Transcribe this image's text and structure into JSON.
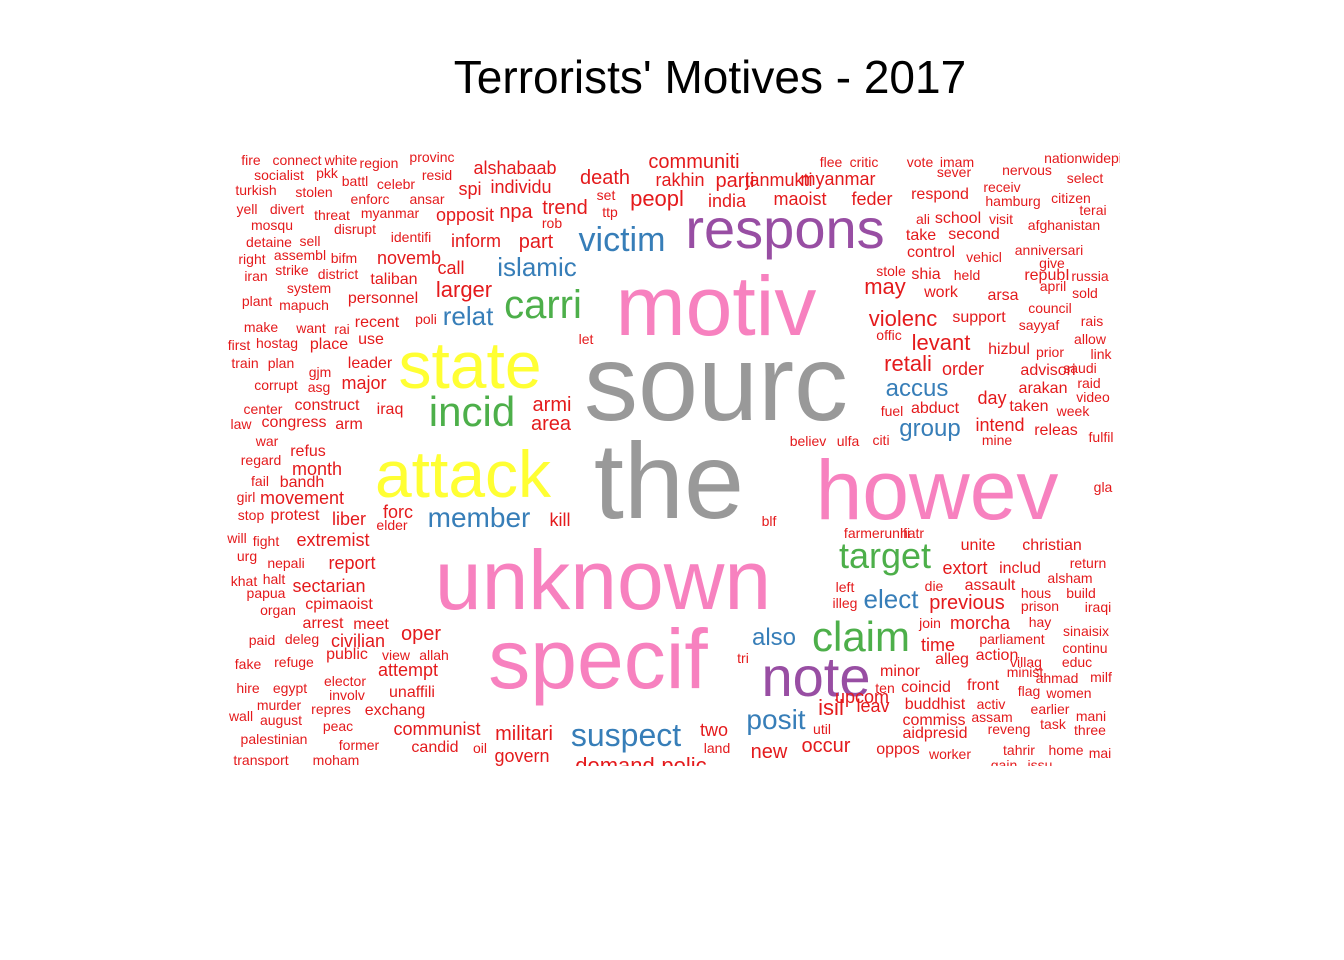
{
  "title": "Terrorists' Motives - 2017",
  "colors": {
    "red": "#e41a1c",
    "blue": "#377eb8",
    "green": "#4daf4a",
    "purple": "#984ea3",
    "yellow": "#ffff33",
    "gray": "#999999",
    "pink": "#f781bf"
  },
  "words": [
    {
      "text": "sourc",
      "color": "gray"
    },
    {
      "text": "the",
      "color": "gray"
    },
    {
      "text": "motiv",
      "color": "pink"
    },
    {
      "text": "unknown",
      "color": "pink"
    },
    {
      "text": "specif",
      "color": "pink"
    },
    {
      "text": "howev",
      "color": "pink"
    },
    {
      "text": "state",
      "color": "yellow"
    },
    {
      "text": "attack",
      "color": "yellow"
    },
    {
      "text": "respons",
      "color": "purple"
    },
    {
      "text": "note",
      "color": "purple"
    },
    {
      "text": "claim",
      "color": "green"
    },
    {
      "text": "incid",
      "color": "green"
    },
    {
      "text": "carri",
      "color": "green"
    },
    {
      "text": "target",
      "color": "green"
    },
    {
      "text": "victim",
      "color": "blue"
    },
    {
      "text": "suspect",
      "color": "blue"
    },
    {
      "text": "member",
      "color": "blue"
    },
    {
      "text": "islamic",
      "color": "blue"
    },
    {
      "text": "relat",
      "color": "blue"
    },
    {
      "text": "accus",
      "color": "blue"
    },
    {
      "text": "group",
      "color": "blue"
    },
    {
      "text": "elect",
      "color": "blue"
    },
    {
      "text": "also",
      "color": "blue"
    },
    {
      "text": "posit",
      "color": "blue"
    },
    {
      "text": "peopl",
      "color": "red"
    },
    {
      "text": "communiti",
      "color": "red"
    },
    {
      "text": "alshabaab",
      "color": "red"
    },
    {
      "text": "death",
      "color": "red"
    },
    {
      "text": "rakhin",
      "color": "red"
    },
    {
      "text": "parti",
      "color": "red"
    },
    {
      "text": "janmukti",
      "color": "red"
    },
    {
      "text": "myanmar",
      "color": "red"
    },
    {
      "text": "maoist",
      "color": "red"
    },
    {
      "text": "feder",
      "color": "red"
    },
    {
      "text": "india",
      "color": "red"
    },
    {
      "text": "trend",
      "color": "red"
    },
    {
      "text": "npa",
      "color": "red"
    },
    {
      "text": "opposit",
      "color": "red"
    },
    {
      "text": "individu",
      "color": "red"
    },
    {
      "text": "spi",
      "color": "red"
    },
    {
      "text": "inform",
      "color": "red"
    },
    {
      "text": "part",
      "color": "red"
    },
    {
      "text": "larger",
      "color": "red"
    },
    {
      "text": "call",
      "color": "red"
    },
    {
      "text": "novemb",
      "color": "red"
    },
    {
      "text": "taliban",
      "color": "red"
    },
    {
      "text": "personnel",
      "color": "red"
    },
    {
      "text": "recent",
      "color": "red"
    },
    {
      "text": "use",
      "color": "red"
    },
    {
      "text": "leader",
      "color": "red"
    },
    {
      "text": "place",
      "color": "red"
    },
    {
      "text": "major",
      "color": "red"
    },
    {
      "text": "iraq",
      "color": "red"
    },
    {
      "text": "armi",
      "color": "red"
    },
    {
      "text": "area",
      "color": "red"
    },
    {
      "text": "construct",
      "color": "red"
    },
    {
      "text": "arm",
      "color": "red"
    },
    {
      "text": "congress",
      "color": "red"
    },
    {
      "text": "refus",
      "color": "red"
    },
    {
      "text": "month",
      "color": "red"
    },
    {
      "text": "bandh",
      "color": "red"
    },
    {
      "text": "movement",
      "color": "red"
    },
    {
      "text": "protest",
      "color": "red"
    },
    {
      "text": "liber",
      "color": "red"
    },
    {
      "text": "forc",
      "color": "red"
    },
    {
      "text": "kill",
      "color": "red"
    },
    {
      "text": "extremist",
      "color": "red"
    },
    {
      "text": "report",
      "color": "red"
    },
    {
      "text": "sectarian",
      "color": "red"
    },
    {
      "text": "cpimaoist",
      "color": "red"
    },
    {
      "text": "arrest",
      "color": "red"
    },
    {
      "text": "meet",
      "color": "red"
    },
    {
      "text": "civilian",
      "color": "red"
    },
    {
      "text": "public",
      "color": "red"
    },
    {
      "text": "oper",
      "color": "red"
    },
    {
      "text": "attempt",
      "color": "red"
    },
    {
      "text": "unaffili",
      "color": "red"
    },
    {
      "text": "exchang",
      "color": "red"
    },
    {
      "text": "communist",
      "color": "red"
    },
    {
      "text": "candid",
      "color": "red"
    },
    {
      "text": "militari",
      "color": "red"
    },
    {
      "text": "govern",
      "color": "red"
    },
    {
      "text": "two",
      "color": "red"
    },
    {
      "text": "new",
      "color": "red"
    },
    {
      "text": "occur",
      "color": "red"
    },
    {
      "text": "isil",
      "color": "red"
    },
    {
      "text": "leav",
      "color": "red"
    },
    {
      "text": "upcom",
      "color": "red"
    },
    {
      "text": "minor",
      "color": "red"
    },
    {
      "text": "commiss",
      "color": "red"
    },
    {
      "text": "oppos",
      "color": "red"
    },
    {
      "text": "may",
      "color": "red"
    },
    {
      "text": "violenc",
      "color": "red"
    },
    {
      "text": "levant",
      "color": "red"
    },
    {
      "text": "retali",
      "color": "red"
    },
    {
      "text": "order",
      "color": "red"
    },
    {
      "text": "day",
      "color": "red"
    },
    {
      "text": "abduct",
      "color": "red"
    },
    {
      "text": "intend",
      "color": "red"
    },
    {
      "text": "releas",
      "color": "red"
    },
    {
      "text": "unite",
      "color": "red"
    },
    {
      "text": "christian",
      "color": "red"
    },
    {
      "text": "extort",
      "color": "red"
    },
    {
      "text": "includ",
      "color": "red"
    },
    {
      "text": "assault",
      "color": "red"
    },
    {
      "text": "previous",
      "color": "red"
    },
    {
      "text": "morcha",
      "color": "red"
    },
    {
      "text": "time",
      "color": "red"
    },
    {
      "text": "alleg",
      "color": "red"
    },
    {
      "text": "action",
      "color": "red"
    },
    {
      "text": "coincid",
      "color": "red"
    },
    {
      "text": "front",
      "color": "red"
    },
    {
      "text": "buddhist",
      "color": "red"
    },
    {
      "text": "aidpresid",
      "color": "red"
    },
    {
      "text": "worker",
      "color": "red"
    },
    {
      "text": "respond",
      "color": "red"
    },
    {
      "text": "school",
      "color": "red"
    },
    {
      "text": "second",
      "color": "red"
    },
    {
      "text": "control",
      "color": "red"
    },
    {
      "text": "take",
      "color": "red"
    },
    {
      "text": "shia",
      "color": "red"
    },
    {
      "text": "work",
      "color": "red"
    },
    {
      "text": "support",
      "color": "red"
    },
    {
      "text": "hizbul",
      "color": "red"
    },
    {
      "text": "advisori",
      "color": "red"
    },
    {
      "text": "arakan",
      "color": "red"
    },
    {
      "text": "taken",
      "color": "red"
    },
    {
      "text": "repubI",
      "color": "red"
    },
    {
      "text": "arsa",
      "color": "red"
    },
    {
      "text": "socialist",
      "color": "red"
    },
    {
      "text": "turkish",
      "color": "red"
    },
    {
      "text": "stolen",
      "color": "red"
    },
    {
      "text": "battl",
      "color": "red"
    },
    {
      "text": "celebr",
      "color": "red"
    },
    {
      "text": "pkk",
      "color": "red"
    },
    {
      "text": "region",
      "color": "red"
    },
    {
      "text": "resid",
      "color": "red"
    },
    {
      "text": "enforc",
      "color": "red"
    },
    {
      "text": "ansar",
      "color": "red"
    },
    {
      "text": "yell",
      "color": "red"
    },
    {
      "text": "divert",
      "color": "red"
    },
    {
      "text": "threat",
      "color": "red"
    },
    {
      "text": "myanmar",
      "color": "red"
    },
    {
      "text": "mosqu",
      "color": "red"
    },
    {
      "text": "disrupt",
      "color": "red"
    },
    {
      "text": "identifi",
      "color": "red"
    },
    {
      "text": "detaine",
      "color": "red"
    },
    {
      "text": "sell",
      "color": "red"
    },
    {
      "text": "right",
      "color": "red"
    },
    {
      "text": "assembl",
      "color": "red"
    },
    {
      "text": "bifm",
      "color": "red"
    },
    {
      "text": "iran",
      "color": "red"
    },
    {
      "text": "strike",
      "color": "red"
    },
    {
      "text": "district",
      "color": "red"
    },
    {
      "text": "system",
      "color": "red"
    },
    {
      "text": "plant",
      "color": "red"
    },
    {
      "text": "mapuch",
      "color": "red"
    },
    {
      "text": "make",
      "color": "red"
    },
    {
      "text": "want",
      "color": "red"
    },
    {
      "text": "rai",
      "color": "red"
    },
    {
      "text": "first",
      "color": "red"
    },
    {
      "text": "hostag",
      "color": "red"
    },
    {
      "text": "train",
      "color": "red"
    },
    {
      "text": "plan",
      "color": "red"
    },
    {
      "text": "gjm",
      "color": "red"
    },
    {
      "text": "corrupt",
      "color": "red"
    },
    {
      "text": "asg",
      "color": "red"
    },
    {
      "text": "center",
      "color": "red"
    },
    {
      "text": "law",
      "color": "red"
    },
    {
      "text": "war",
      "color": "red"
    },
    {
      "text": "regard",
      "color": "red"
    },
    {
      "text": "fail",
      "color": "red"
    },
    {
      "text": "girl",
      "color": "red"
    },
    {
      "text": "stop",
      "color": "red"
    },
    {
      "text": "will",
      "color": "red"
    },
    {
      "text": "fight",
      "color": "red"
    },
    {
      "text": "elder",
      "color": "red"
    },
    {
      "text": "urg",
      "color": "red"
    },
    {
      "text": "nepali",
      "color": "red"
    },
    {
      "text": "khat",
      "color": "red"
    },
    {
      "text": "halt",
      "color": "red"
    },
    {
      "text": "papua",
      "color": "red"
    },
    {
      "text": "organ",
      "color": "red"
    },
    {
      "text": "paid",
      "color": "red"
    },
    {
      "text": "deleg",
      "color": "red"
    },
    {
      "text": "view",
      "color": "red"
    },
    {
      "text": "allah",
      "color": "red"
    },
    {
      "text": "fake",
      "color": "red"
    },
    {
      "text": "refuge",
      "color": "red"
    },
    {
      "text": "elector",
      "color": "red"
    },
    {
      "text": "hire",
      "color": "red"
    },
    {
      "text": "egypt",
      "color": "red"
    },
    {
      "text": "involv",
      "color": "red"
    },
    {
      "text": "murder",
      "color": "red"
    },
    {
      "text": "repres",
      "color": "red"
    },
    {
      "text": "wall",
      "color": "red"
    },
    {
      "text": "august",
      "color": "red"
    },
    {
      "text": "peac",
      "color": "red"
    },
    {
      "text": "palestinian",
      "color": "red"
    },
    {
      "text": "former",
      "color": "red"
    },
    {
      "text": "transport",
      "color": "red"
    },
    {
      "text": "moham",
      "color": "red"
    },
    {
      "text": "oil",
      "color": "red"
    },
    {
      "text": "land",
      "color": "red"
    },
    {
      "text": "demand",
      "color": "red"
    },
    {
      "text": "polic",
      "color": "red"
    },
    {
      "text": "set",
      "color": "red"
    },
    {
      "text": "ttp",
      "color": "red"
    },
    {
      "text": "rob",
      "color": "red"
    },
    {
      "text": "poli",
      "color": "red"
    },
    {
      "text": "let",
      "color": "red"
    },
    {
      "text": "believ",
      "color": "red"
    },
    {
      "text": "ulfa",
      "color": "red"
    },
    {
      "text": "citi",
      "color": "red"
    },
    {
      "text": "fuel",
      "color": "red"
    },
    {
      "text": "blf",
      "color": "red"
    },
    {
      "text": "farmerunifi",
      "color": "red"
    },
    {
      "text": "hatr",
      "color": "red"
    },
    {
      "text": "left",
      "color": "red"
    },
    {
      "text": "illeg",
      "color": "red"
    },
    {
      "text": "die",
      "color": "red"
    },
    {
      "text": "join",
      "color": "red"
    },
    {
      "text": "tri",
      "color": "red"
    },
    {
      "text": "ten",
      "color": "red"
    },
    {
      "text": "offic",
      "color": "red"
    },
    {
      "text": "stole",
      "color": "red"
    },
    {
      "text": "ali",
      "color": "red"
    },
    {
      "text": "flee",
      "color": "red"
    },
    {
      "text": "critic",
      "color": "red"
    },
    {
      "text": "vote",
      "color": "red"
    },
    {
      "text": "imam",
      "color": "red"
    },
    {
      "text": "sever",
      "color": "red"
    },
    {
      "text": "nervous",
      "color": "red"
    },
    {
      "text": "nationwidepi",
      "color": "red"
    },
    {
      "text": "receiv",
      "color": "red"
    },
    {
      "text": "select",
      "color": "red"
    },
    {
      "text": "hamburg",
      "color": "red"
    },
    {
      "text": "citizen",
      "color": "red"
    },
    {
      "text": "visit",
      "color": "red"
    },
    {
      "text": "afghanistan",
      "color": "red"
    },
    {
      "text": "terai",
      "color": "red"
    },
    {
      "text": "anniversari",
      "color": "red"
    },
    {
      "text": "vehicl",
      "color": "red"
    },
    {
      "text": "give",
      "color": "red"
    },
    {
      "text": "held",
      "color": "red"
    },
    {
      "text": "russia",
      "color": "red"
    },
    {
      "text": "april",
      "color": "red"
    },
    {
      "text": "sold",
      "color": "red"
    },
    {
      "text": "council",
      "color": "red"
    },
    {
      "text": "sayyaf",
      "color": "red"
    },
    {
      "text": "rais",
      "color": "red"
    },
    {
      "text": "allow",
      "color": "red"
    },
    {
      "text": "prior",
      "color": "red"
    },
    {
      "text": "link",
      "color": "red"
    },
    {
      "text": "saudi",
      "color": "red"
    },
    {
      "text": "raid",
      "color": "red"
    },
    {
      "text": "video",
      "color": "red"
    },
    {
      "text": "week",
      "color": "red"
    },
    {
      "text": "mine",
      "color": "red"
    },
    {
      "text": "fulfil",
      "color": "red"
    },
    {
      "text": "gla",
      "color": "red"
    },
    {
      "text": "return",
      "color": "red"
    },
    {
      "text": "alsham",
      "color": "red"
    },
    {
      "text": "hous",
      "color": "red"
    },
    {
      "text": "build",
      "color": "red"
    },
    {
      "text": "prison",
      "color": "red"
    },
    {
      "text": "iraqi",
      "color": "red"
    },
    {
      "text": "parliament",
      "color": "red"
    },
    {
      "text": "hay",
      "color": "red"
    },
    {
      "text": "sinaisix",
      "color": "red"
    },
    {
      "text": "continu",
      "color": "red"
    },
    {
      "text": "villag",
      "color": "red"
    },
    {
      "text": "educ",
      "color": "red"
    },
    {
      "text": "minist",
      "color": "red"
    },
    {
      "text": "ahmad",
      "color": "red"
    },
    {
      "text": "milf",
      "color": "red"
    },
    {
      "text": "flag",
      "color": "red"
    },
    {
      "text": "women",
      "color": "red"
    },
    {
      "text": "activ",
      "color": "red"
    },
    {
      "text": "earlier",
      "color": "red"
    },
    {
      "text": "assam",
      "color": "red"
    },
    {
      "text": "mani",
      "color": "red"
    },
    {
      "text": "task",
      "color": "red"
    },
    {
      "text": "reveng",
      "color": "red"
    },
    {
      "text": "three",
      "color": "red"
    },
    {
      "text": "tahrir",
      "color": "red"
    },
    {
      "text": "home",
      "color": "red"
    },
    {
      "text": "mai",
      "color": "red"
    },
    {
      "text": "gain",
      "color": "red"
    },
    {
      "text": "issu",
      "color": "red"
    },
    {
      "text": "fire",
      "color": "red"
    },
    {
      "text": "connect",
      "color": "red"
    },
    {
      "text": "white",
      "color": "red"
    },
    {
      "text": "provinc",
      "color": "red"
    },
    {
      "text": "util",
      "color": "red"
    }
  ]
}
